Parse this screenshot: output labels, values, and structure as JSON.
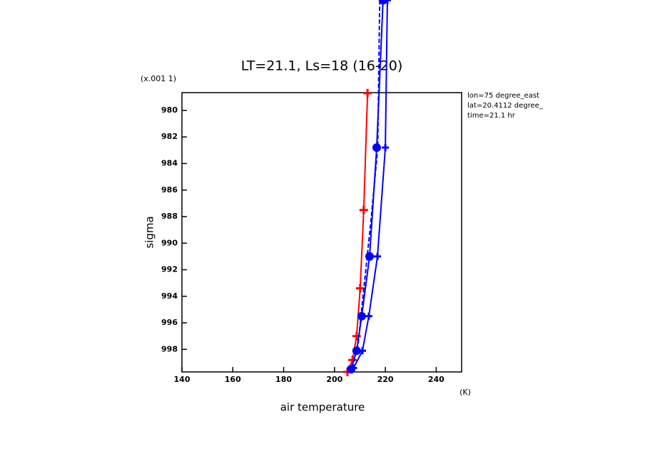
{
  "chart_data": {
    "type": "line",
    "title": "LT=21.1, Ls=18 (16-20)",
    "x_label": "air temperature",
    "y_label": "sigma",
    "x_unit": "(K)",
    "y_unit": "(x.001 1)",
    "annotations": [
      "lon=75 degree_east",
      "lat=20.4112 degree_",
      "time=21.1 hr"
    ],
    "xlim": [
      140,
      250
    ],
    "ylim": [
      999.7,
      978.66
    ],
    "xticks": [
      140,
      160,
      180,
      200,
      220,
      240
    ],
    "yticks": [
      980,
      982,
      984,
      986,
      988,
      990,
      992,
      994,
      996,
      998
    ],
    "series": [
      {
        "color": "#ff0000",
        "marker": "plus",
        "dash": false,
        "x": [
          213.0,
          211.5,
          210.1,
          208.7,
          207.1,
          205.1
        ],
        "values": [
          978.7,
          987.5,
          993.4,
          997.0,
          998.8,
          999.7
        ]
      },
      {
        "color": "#0000ff",
        "marker": "dot",
        "dash": false,
        "x": [
          219.1,
          216.6,
          213.8,
          210.7,
          208.7,
          206.5
        ],
        "values": [
          971.7,
          982.8,
          991.0,
          995.5,
          998.1,
          999.5
        ]
      },
      {
        "color": "#0000ff",
        "marker": "cross",
        "dash": false,
        "x": [
          220.8,
          220.0,
          216.9,
          213.5,
          211.0,
          207.5
        ],
        "values": [
          971.7,
          982.8,
          991.0,
          995.5,
          998.1,
          999.4
        ]
      },
      {
        "color": "#0000ff",
        "marker": "none",
        "dash": true,
        "x": [
          217.8,
          217.0,
          214.5,
          211.5,
          209.3,
          207.0
        ],
        "values": [
          971.7,
          982.8,
          988.0,
          993.5,
          997.6,
          999.4
        ]
      }
    ]
  }
}
